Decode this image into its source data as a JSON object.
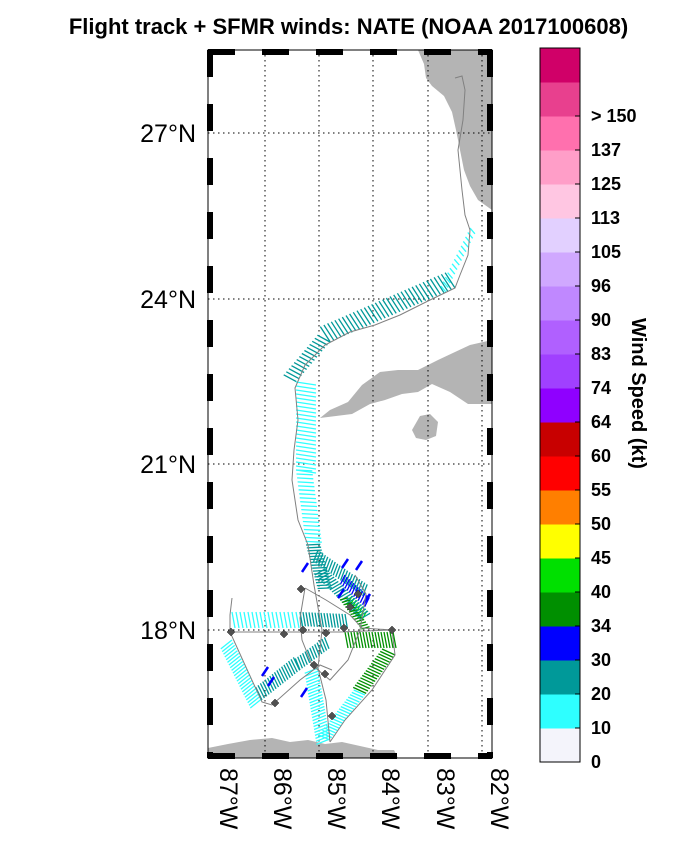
{
  "title": "Flight track + SFMR winds: NATE (NOAA 2017100608)",
  "map": {
    "lat_labels": [
      "27°N",
      "24°N",
      "21°N",
      "18°N"
    ],
    "lat_values": [
      27,
      24,
      21,
      18
    ],
    "lon_labels": [
      "87°W",
      "86°W",
      "85°W",
      "84°W",
      "83°W",
      "82°W"
    ],
    "lon_values": [
      -87,
      -86,
      -85,
      -84,
      -83,
      -82
    ],
    "lat_range": [
      15.75,
      28.65
    ],
    "lon_range": [
      -87.05,
      -81.75
    ],
    "grid": "dotted",
    "land_color": "#b4b4b4",
    "track_color": "#808080",
    "marker_color": "#505050"
  },
  "colorbar": {
    "title": "Wind Speed (kt)",
    "ticks": [
      "0",
      "10",
      "20",
      "30",
      "34",
      "40",
      "45",
      "50",
      "55",
      "60",
      "64",
      "74",
      "83",
      "90",
      "96",
      "105",
      "113",
      "125",
      "137",
      "> 150"
    ],
    "colors": [
      "#f4f4fb",
      "#2effff",
      "#009999",
      "#0000ff",
      "#008f00",
      "#00e000",
      "#ffff00",
      "#ff7f00",
      "#ff0000",
      "#c80000",
      "#8f00ff",
      "#a040ff",
      "#b060ff",
      "#c088ff",
      "#d0a8ff",
      "#e2d0ff",
      "#ffc6e2",
      "#ff9ec8",
      "#ff70ae",
      "#e8408e",
      "#d00068"
    ]
  }
}
